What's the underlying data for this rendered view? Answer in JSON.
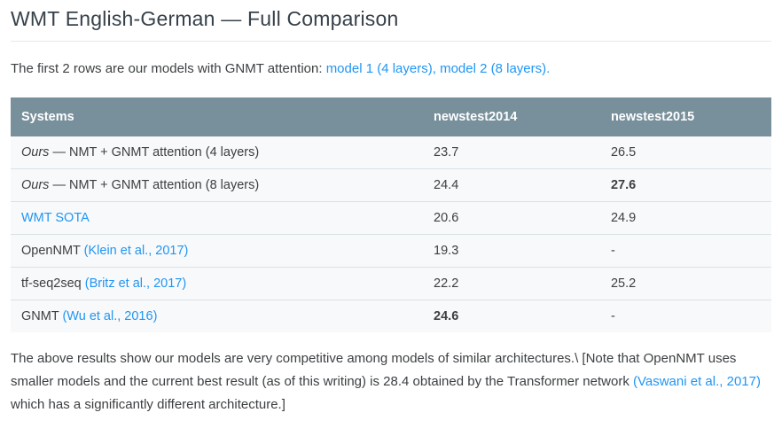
{
  "title": "WMT English-German — Full Comparison",
  "intro": {
    "text_before_links": "The first 2 rows are our models with GNMT attention: ",
    "model1_link": "model 1 (4 layers)",
    "links_separator": ", ",
    "model2_link": "model 2 (8 layers)",
    "text_after_links": "."
  },
  "table": {
    "columns": [
      "Systems",
      "newstest2014",
      "newstest2015"
    ],
    "rows": [
      {
        "system_prefix_italic": "Ours",
        "system_text": " — NMT + GNMT attention (4 layers)",
        "newstest2014": "23.7",
        "newstest2015": "26.5"
      },
      {
        "system_prefix_italic": "Ours",
        "system_text": " — NMT + GNMT attention (8 layers)",
        "newstest2014": "24.4",
        "newstest2015": "27.6",
        "newstest2015_bold": true
      },
      {
        "system_link": "WMT SOTA",
        "newstest2014": "20.6",
        "newstest2015": "24.9"
      },
      {
        "system_text": "OpenNMT",
        "citation_link": "(Klein et al., 2017)",
        "newstest2014": "19.3",
        "newstest2015": "-"
      },
      {
        "system_text": "tf-seq2seq",
        "citation_link": "(Britz et al., 2017)",
        "newstest2014": "22.2",
        "newstest2015": "25.2"
      },
      {
        "system_text": "GNMT",
        "citation_link": "(Wu et al., 2016)",
        "newstest2014": "24.6",
        "newstest2014_bold": true,
        "newstest2015": "-"
      }
    ]
  },
  "footer": {
    "text_part1": "The above results show our models are very competitive among models of similar architectures.\\ [Note that OpenNMT uses smaller models and the current best result (as of this writing) is 28.4 obtained by the Transformer network",
    "vaswani_link": "(Vaswani et al., 2017)",
    "text_part2": "which has a significantly different architecture.]"
  },
  "colors": {
    "link": "#2196f3",
    "table_header_bg": "#78909c",
    "table_header_text": "#ffffff",
    "row_bg": "#f8f9fa",
    "row_border": "#d9e1e5",
    "body_text": "#3c4043"
  }
}
